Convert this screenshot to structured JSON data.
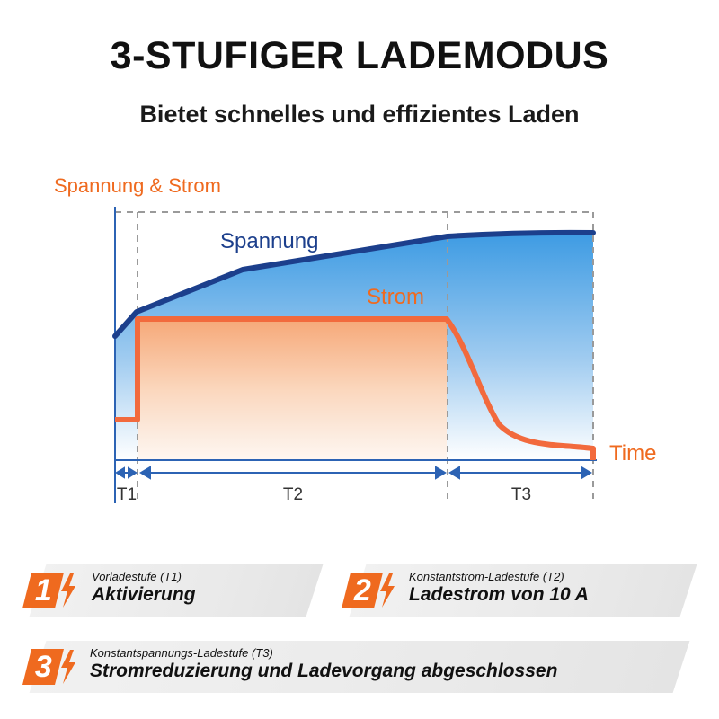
{
  "header": {
    "title": "3-STUFIGER LADEMODUS",
    "subtitle": "Bietet schnelles und effizientes Laden"
  },
  "diagram": {
    "y_axis_label": "Spannung & Strom",
    "voltage_label": "Spannung",
    "current_label": "Strom",
    "x_axis_label": "Time",
    "phases": [
      "T1",
      "T2",
      "T3"
    ],
    "colors": {
      "voltage": "#1c3f8c",
      "current": "#f26a3d",
      "accent": "#ef6a1f",
      "axis": "#2c63b4"
    }
  },
  "stages": [
    {
      "number": "1",
      "small": "Vorladestufe (T1)",
      "big": "Aktivierung",
      "icon": "lightning-bolt-icon"
    },
    {
      "number": "2",
      "small": "Konstantstrom-Ladestufe (T2)",
      "big": "Ladestrom von 10 A",
      "icon": "lightning-bolt-icon"
    },
    {
      "number": "3",
      "small": "Konstantspannungs-Ladestufe (T3)",
      "big": "Stromreduzierung und Ladevorgang abgeschlossen",
      "icon": "lightning-bolt-icon"
    }
  ]
}
